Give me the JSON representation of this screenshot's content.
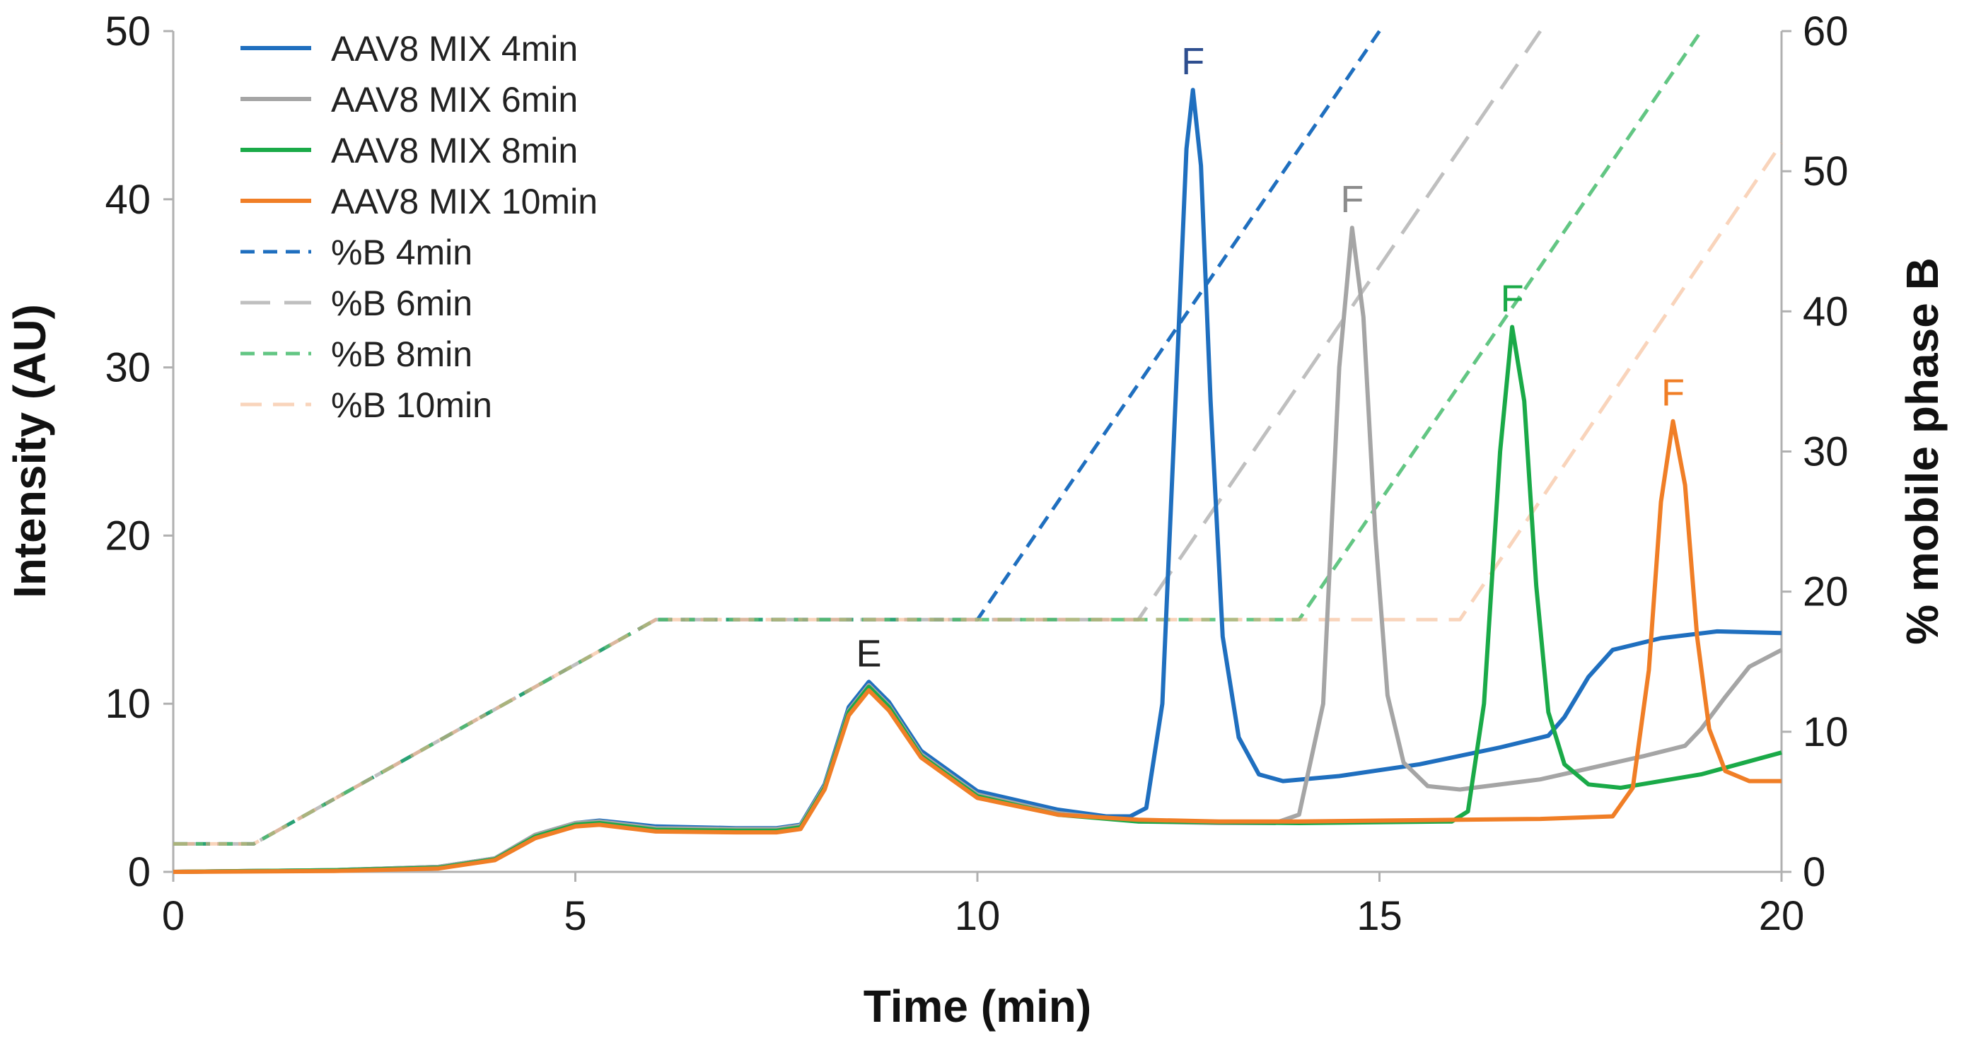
{
  "chart_data": {
    "type": "line",
    "xlabel": "Time (min)",
    "ylabel": "Intensity (AU)",
    "y2label": "% mobile phase B",
    "xlim": [
      0,
      20
    ],
    "ylim": [
      0,
      50
    ],
    "y2lim": [
      0,
      60
    ],
    "xticks": [
      0,
      5,
      10,
      15,
      20
    ],
    "yticks": [
      0,
      10,
      20,
      30,
      40,
      50
    ],
    "y2ticks": [
      0,
      10,
      20,
      30,
      40,
      50,
      60
    ],
    "grid": false,
    "legend_position": "top-left",
    "series": [
      {
        "name": "AAV8 MIX 4min",
        "axis": "left",
        "style": "solid",
        "color": "#1f6fbf",
        "points": [
          [
            0,
            0
          ],
          [
            2,
            0.1
          ],
          [
            3.3,
            0.3
          ],
          [
            4,
            0.8
          ],
          [
            4.5,
            2.2
          ],
          [
            5,
            2.9
          ],
          [
            5.3,
            3.05
          ],
          [
            6,
            2.7
          ],
          [
            7,
            2.6
          ],
          [
            7.5,
            2.6
          ],
          [
            7.8,
            2.8
          ],
          [
            8.1,
            5.2
          ],
          [
            8.4,
            9.8
          ],
          [
            8.65,
            11.3
          ],
          [
            8.9,
            10.1
          ],
          [
            9.3,
            7.2
          ],
          [
            10,
            4.8
          ],
          [
            11,
            3.7
          ],
          [
            11.6,
            3.3
          ],
          [
            11.9,
            3.3
          ],
          [
            12.1,
            3.8
          ],
          [
            12.3,
            10
          ],
          [
            12.5,
            32
          ],
          [
            12.6,
            43
          ],
          [
            12.68,
            46.5
          ],
          [
            12.78,
            42
          ],
          [
            12.9,
            28
          ],
          [
            13.05,
            14
          ],
          [
            13.25,
            8
          ],
          [
            13.5,
            5.8
          ],
          [
            13.8,
            5.4
          ],
          [
            14.5,
            5.7
          ],
          [
            15.5,
            6.4
          ],
          [
            16.5,
            7.4
          ],
          [
            17.1,
            8.1
          ],
          [
            17.3,
            9.2
          ],
          [
            17.6,
            11.6
          ],
          [
            17.9,
            13.2
          ],
          [
            18.5,
            13.9
          ],
          [
            19.2,
            14.3
          ],
          [
            20,
            14.2
          ]
        ]
      },
      {
        "name": "AAV8 MIX 6min",
        "axis": "left",
        "style": "solid",
        "color": "#a5a5a5",
        "points": [
          [
            0,
            0
          ],
          [
            2,
            0.1
          ],
          [
            3.3,
            0.3
          ],
          [
            4,
            0.8
          ],
          [
            4.5,
            2.2
          ],
          [
            5,
            2.9
          ],
          [
            5.3,
            3.0
          ],
          [
            6,
            2.6
          ],
          [
            7,
            2.55
          ],
          [
            7.5,
            2.55
          ],
          [
            7.8,
            2.75
          ],
          [
            8.1,
            5.1
          ],
          [
            8.4,
            9.6
          ],
          [
            8.65,
            11.1
          ],
          [
            8.9,
            9.9
          ],
          [
            9.3,
            7.0
          ],
          [
            10,
            4.6
          ],
          [
            11,
            3.5
          ],
          [
            12,
            3.0
          ],
          [
            13,
            2.9
          ],
          [
            13.7,
            2.9
          ],
          [
            14.0,
            3.4
          ],
          [
            14.3,
            10
          ],
          [
            14.5,
            30
          ],
          [
            14.66,
            38.3
          ],
          [
            14.8,
            33
          ],
          [
            14.95,
            20
          ],
          [
            15.1,
            10.5
          ],
          [
            15.3,
            6.5
          ],
          [
            15.6,
            5.1
          ],
          [
            16.0,
            4.9
          ],
          [
            17,
            5.5
          ],
          [
            18.3,
            6.9
          ],
          [
            18.8,
            7.5
          ],
          [
            19.0,
            8.5
          ],
          [
            19.3,
            10.4
          ],
          [
            19.6,
            12.2
          ],
          [
            20,
            13.2
          ]
        ]
      },
      {
        "name": "AAV8 MIX 8min",
        "axis": "left",
        "style": "solid",
        "color": "#1aaa48",
        "points": [
          [
            0,
            0
          ],
          [
            2,
            0.1
          ],
          [
            3.3,
            0.25
          ],
          [
            4,
            0.75
          ],
          [
            4.5,
            2.1
          ],
          [
            5,
            2.8
          ],
          [
            5.3,
            2.9
          ],
          [
            6,
            2.5
          ],
          [
            7,
            2.45
          ],
          [
            7.5,
            2.45
          ],
          [
            7.8,
            2.65
          ],
          [
            8.1,
            5.0
          ],
          [
            8.4,
            9.5
          ],
          [
            8.65,
            11.0
          ],
          [
            8.9,
            9.8
          ],
          [
            9.3,
            6.9
          ],
          [
            10,
            4.5
          ],
          [
            11,
            3.4
          ],
          [
            12,
            3.0
          ],
          [
            13,
            2.95
          ],
          [
            14,
            2.9
          ],
          [
            15,
            2.95
          ],
          [
            15.9,
            3.0
          ],
          [
            16.1,
            3.6
          ],
          [
            16.3,
            10
          ],
          [
            16.5,
            25
          ],
          [
            16.65,
            32.4
          ],
          [
            16.8,
            28
          ],
          [
            16.95,
            17
          ],
          [
            17.1,
            9.5
          ],
          [
            17.3,
            6.4
          ],
          [
            17.6,
            5.2
          ],
          [
            18,
            5.0
          ],
          [
            19,
            5.8
          ],
          [
            20,
            7.1
          ]
        ]
      },
      {
        "name": "AAV8 MIX 10min",
        "axis": "left",
        "style": "solid",
        "color": "#f07e26",
        "points": [
          [
            0,
            0
          ],
          [
            2,
            0.05
          ],
          [
            3.3,
            0.2
          ],
          [
            4,
            0.7
          ],
          [
            4.5,
            2.0
          ],
          [
            5,
            2.7
          ],
          [
            5.3,
            2.8
          ],
          [
            6,
            2.4
          ],
          [
            7,
            2.35
          ],
          [
            7.5,
            2.35
          ],
          [
            7.8,
            2.55
          ],
          [
            8.1,
            4.9
          ],
          [
            8.4,
            9.3
          ],
          [
            8.65,
            10.8
          ],
          [
            8.9,
            9.6
          ],
          [
            9.3,
            6.8
          ],
          [
            10,
            4.4
          ],
          [
            11,
            3.4
          ],
          [
            12,
            3.1
          ],
          [
            13,
            3.0
          ],
          [
            14,
            3.0
          ],
          [
            15,
            3.05
          ],
          [
            16,
            3.1
          ],
          [
            17,
            3.15
          ],
          [
            17.9,
            3.3
          ],
          [
            18.15,
            5
          ],
          [
            18.35,
            12
          ],
          [
            18.5,
            22
          ],
          [
            18.65,
            26.8
          ],
          [
            18.8,
            23
          ],
          [
            18.95,
            14
          ],
          [
            19.1,
            8.5
          ],
          [
            19.3,
            6.0
          ],
          [
            19.6,
            5.4
          ],
          [
            20,
            5.4
          ]
        ]
      },
      {
        "name": "%B 4min",
        "axis": "right",
        "style": "dashed",
        "color": "#1f6fbf",
        "opacity": 1.0,
        "dash": "20 12",
        "points": [
          [
            0,
            2
          ],
          [
            1,
            2
          ],
          [
            6,
            18
          ],
          [
            10,
            18
          ],
          [
            15,
            60
          ]
        ]
      },
      {
        "name": "%B 6min",
        "axis": "right",
        "style": "dashed",
        "color": "#bfbfbf",
        "opacity": 1.0,
        "dash": "42 20",
        "points": [
          [
            0,
            2
          ],
          [
            1,
            2
          ],
          [
            6,
            18
          ],
          [
            12,
            18
          ],
          [
            17,
            60
          ]
        ]
      },
      {
        "name": "%B 8min",
        "axis": "right",
        "style": "dashed",
        "color": "#2db35a",
        "opacity": 0.75,
        "dash": "20 12",
        "points": [
          [
            0,
            2
          ],
          [
            1,
            2
          ],
          [
            6,
            18
          ],
          [
            14,
            18
          ],
          [
            19,
            60
          ]
        ]
      },
      {
        "name": "%B 10min",
        "axis": "right",
        "style": "dashed",
        "color": "#f4b183",
        "opacity": 0.55,
        "dash": "30 16",
        "points": [
          [
            0,
            2
          ],
          [
            1,
            2
          ],
          [
            6,
            18
          ],
          [
            16,
            18
          ],
          [
            20,
            52
          ]
        ]
      }
    ],
    "annotations": [
      {
        "text": "E",
        "x": 8.65,
        "y": 11.3,
        "color": "#222222"
      },
      {
        "text": "F",
        "x": 12.68,
        "y": 46.5,
        "color": "#2e4e8f"
      },
      {
        "text": "F",
        "x": 14.66,
        "y": 38.3,
        "color": "#8c8c8c"
      },
      {
        "text": "F",
        "x": 16.65,
        "y": 32.4,
        "color": "#1aaa48"
      },
      {
        "text": "F",
        "x": 18.65,
        "y": 26.8,
        "color": "#f07e26"
      }
    ]
  }
}
